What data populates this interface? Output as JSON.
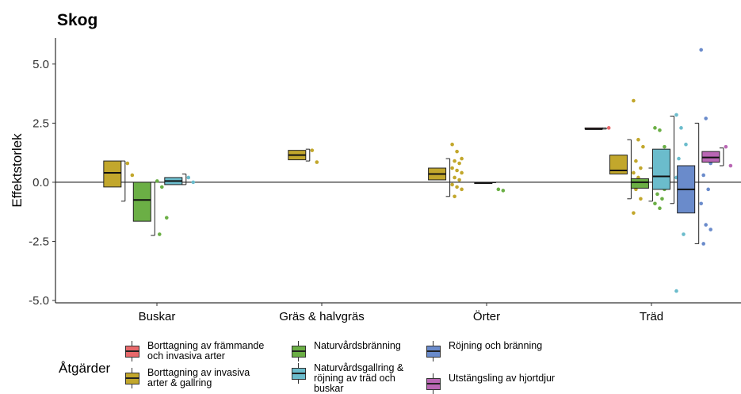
{
  "chart_data": {
    "type": "boxplot",
    "title": "Skog",
    "xlabel": "",
    "ylabel": "Effektstorlek",
    "ylim": [
      -5.1,
      6.1
    ],
    "yticks": [
      5.0,
      2.5,
      0.0,
      -2.5,
      -5.0
    ],
    "ytick_labels": [
      "5.0",
      "2.5",
      "0.0",
      "-2.5",
      "-5.0"
    ],
    "categories": [
      "Buskar",
      "Gräs & halvgräs",
      "Örter",
      "Träd"
    ],
    "grid": false,
    "reference_line_y": 0,
    "legend": {
      "title": "Åtgärder",
      "placement": "bottom",
      "entries": [
        {
          "label": "Borttagning av främmande\noch invasiva arter",
          "color": "#E8696B"
        },
        {
          "label": "Borttagning av invasiva\narter & gallring",
          "color": "#C2A72C"
        },
        {
          "label": "Naturvårdsbränning",
          "color": "#6BAF45"
        },
        {
          "label": "Naturvårdsgallring &\nröjning av träd och\nbuskar",
          "color": "#6BBCCC"
        },
        {
          "label": "Röjning och bränning",
          "color": "#6A8BCB"
        },
        {
          "label": "Utstängsling av hjortdjur",
          "color": "#B966B4"
        }
      ]
    },
    "boxes": [
      {
        "category": "Buskar",
        "series": "Borttagning av invasiva\narter & gallring",
        "offset": -0.27,
        "q1": -0.2,
        "median": 0.4,
        "q3": 0.9,
        "wlo": -0.8,
        "whi": 0.9,
        "points": [
          0.8,
          0.3,
          -0.75
        ]
      },
      {
        "category": "Buskar",
        "series": "Naturvårdsbränning",
        "offset": -0.09,
        "q1": -1.65,
        "median": -0.75,
        "q3": 0.0,
        "wlo": -2.25,
        "whi": 0.0,
        "points": [
          0.05,
          -0.2,
          -1.5,
          -2.2
        ]
      },
      {
        "category": "Buskar",
        "series": "Naturvårdsgallring &\nröjning av träd och\nbuskar",
        "offset": 0.1,
        "q1": -0.1,
        "median": 0.05,
        "q3": 0.2,
        "wlo": -0.1,
        "whi": 0.35,
        "points": [
          0.2,
          0.0
        ]
      },
      {
        "category": "Gräs & halvgräs",
        "series": "Borttagning av invasiva\narter & gallring",
        "offset": -0.15,
        "q1": 0.95,
        "median": 1.15,
        "q3": 1.35,
        "wlo": 0.9,
        "whi": 1.4,
        "points": [
          1.35,
          0.85
        ]
      },
      {
        "category": "Örter",
        "series": "Borttagning av invasiva\narter & gallring",
        "offset": -0.3,
        "q1": 0.1,
        "median": 0.35,
        "q3": 0.6,
        "wlo": -0.6,
        "whi": 1.0,
        "points": [
          1.6,
          1.3,
          1.0,
          0.9,
          0.8,
          0.6,
          0.5,
          0.4,
          0.2,
          0.1,
          -0.1,
          -0.2,
          -0.3,
          -0.6
        ]
      },
      {
        "category": "Örter",
        "series": "Naturvårdsbränning",
        "offset": -0.02,
        "q1": -0.02,
        "median": -0.02,
        "q3": -0.02,
        "wlo": -0.02,
        "whi": -0.02,
        "points": [
          -0.3,
          -0.35
        ]
      },
      {
        "category": "Träd",
        "series": "Borttagning av främmande\noch invasiva arter",
        "offset": -0.35,
        "q1": 2.25,
        "median": 2.25,
        "q3": 2.3,
        "wlo": 2.25,
        "whi": 2.3,
        "points": [
          2.3
        ]
      },
      {
        "category": "Träd",
        "series": "Borttagning av invasiva\narter & gallring",
        "offset": -0.2,
        "q1": 0.35,
        "median": 0.5,
        "q3": 1.15,
        "wlo": -0.7,
        "whi": 1.8,
        "points": [
          3.45,
          1.8,
          1.5,
          0.9,
          0.6,
          0.4,
          0.2,
          0.0,
          -0.3,
          -0.7,
          -1.3
        ]
      },
      {
        "category": "Träd",
        "series": "Naturvårdsbränning",
        "offset": -0.07,
        "q1": -0.25,
        "median": 0.0,
        "q3": 0.15,
        "wlo": -0.8,
        "whi": 0.6,
        "points": [
          2.3,
          2.2,
          1.5,
          1.0,
          0.6,
          0.4,
          0.3,
          0.2,
          0.1,
          0.0,
          -0.1,
          -0.2,
          -0.3,
          -0.5,
          -0.7,
          -0.9,
          -1.1
        ]
      },
      {
        "category": "Träd",
        "series": "Naturvårdsgallring &\nröjning av träd och\nbuskar",
        "offset": 0.06,
        "q1": -0.3,
        "median": 0.25,
        "q3": 1.4,
        "wlo": -0.9,
        "whi": 2.8,
        "points": [
          2.85,
          2.3,
          1.6,
          1.0,
          0.5,
          0.2,
          -0.2,
          -0.6,
          -1.0,
          -2.2,
          -4.6
        ]
      },
      {
        "category": "Träd",
        "series": "Röjning och bränning",
        "offset": 0.21,
        "q1": -1.3,
        "median": -0.3,
        "q3": 0.7,
        "wlo": -2.6,
        "whi": 2.5,
        "points": [
          5.6,
          2.7,
          0.8,
          0.3,
          -0.3,
          -0.9,
          -1.8,
          -2.0,
          -2.6
        ]
      },
      {
        "category": "Träd",
        "series": "Utstängsling av hjortdjur",
        "offset": 0.36,
        "q1": 0.85,
        "median": 1.05,
        "q3": 1.3,
        "wlo": 0.7,
        "whi": 1.45,
        "points": [
          1.5,
          0.7
        ]
      }
    ]
  }
}
